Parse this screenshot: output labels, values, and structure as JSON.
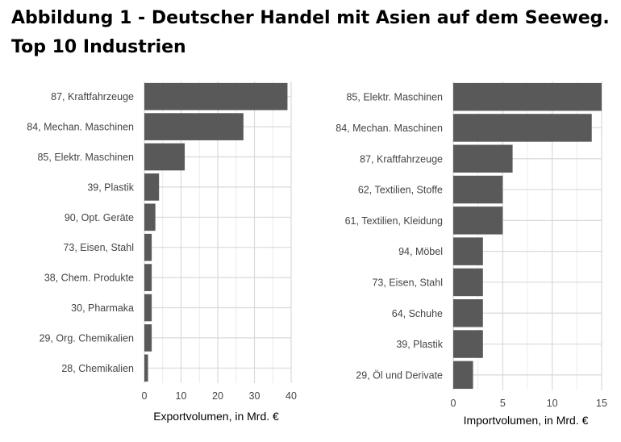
{
  "title_line1": "Abbildung 1 - Deutscher Handel mit Asien auf dem Seeweg.",
  "title_line2": "Top 10 Industrien",
  "colors": {
    "bar": "#595959",
    "grid": "#d9d9d9",
    "gridMinor": "#ececec",
    "text": "#444444"
  },
  "chart_data": [
    {
      "type": "bar",
      "orientation": "horizontal",
      "categories": [
        "87, Kraftfahrzeuge",
        "84, Mechan. Maschinen",
        "85, Elektr. Maschinen",
        "39, Plastik",
        "90, Opt. Geräte",
        "73, Eisen, Stahl",
        "38, Chem. Produkte",
        "30, Pharmaka",
        "29, Org. Chemikalien",
        "28, Chemikalien"
      ],
      "values": [
        39,
        27,
        11,
        4,
        3,
        2,
        2,
        2,
        2,
        1
      ],
      "xlabel": "Exportvolumen, in Mrd. €",
      "xlim": [
        0,
        40
      ],
      "xticks": [
        0,
        10,
        20,
        30,
        40
      ],
      "grid": true
    },
    {
      "type": "bar",
      "orientation": "horizontal",
      "categories": [
        "85, Elektr. Maschinen",
        "84, Mechan. Maschinen",
        "87, Kraftfahrzeuge",
        "62, Textilien, Stoffe",
        "61, Textilien, Kleidung",
        "94, Möbel",
        "73, Eisen, Stahl",
        "64, Schuhe",
        "39, Plastik",
        "29, Öl und Derivate"
      ],
      "values": [
        15,
        14,
        6,
        5,
        5,
        3,
        3,
        3,
        3,
        2
      ],
      "xlabel": "Importvolumen, in Mrd. €",
      "xlim": [
        0,
        15
      ],
      "xticks": [
        0,
        5,
        10,
        15
      ],
      "grid": true
    }
  ]
}
